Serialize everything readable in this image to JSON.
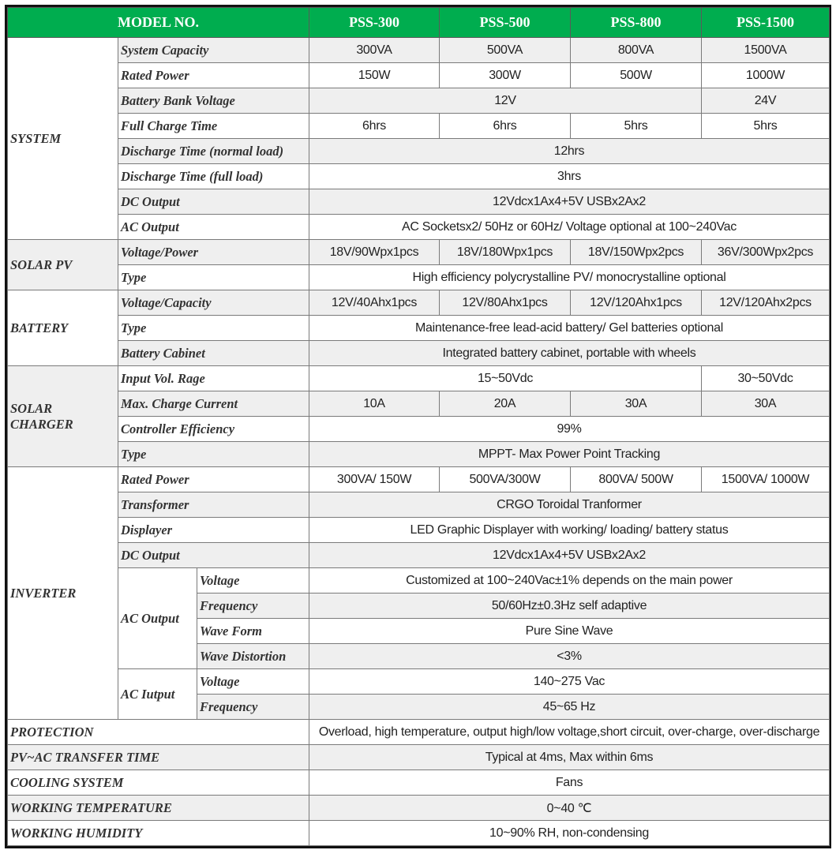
{
  "colors": {
    "header_bg": "#00ad4f",
    "header_text": "#ffffff",
    "stripe": "#efefef",
    "border": "#7a7a7a"
  },
  "header": {
    "model_label": "MODEL NO.",
    "models": [
      "PSS-300",
      "PSS-500",
      "PSS-800",
      "PSS-1500"
    ]
  },
  "sections": [
    {
      "category": "SYSTEM",
      "rows": [
        {
          "label": "System Capacity",
          "cells": [
            {
              "v": "300VA"
            },
            {
              "v": "500VA"
            },
            {
              "v": "800VA"
            },
            {
              "v": "1500VA"
            }
          ]
        },
        {
          "label": "Rated Power",
          "cells": [
            {
              "v": "150W"
            },
            {
              "v": "300W"
            },
            {
              "v": "500W"
            },
            {
              "v": "1000W"
            }
          ]
        },
        {
          "label": "Battery Bank Voltage",
          "cells": [
            {
              "v": "12V",
              "span": 3
            },
            {
              "v": "24V"
            }
          ]
        },
        {
          "label": "Full Charge Time",
          "cells": [
            {
              "v": "6hrs"
            },
            {
              "v": "6hrs"
            },
            {
              "v": "5hrs"
            },
            {
              "v": "5hrs"
            }
          ]
        },
        {
          "label": "Discharge Time (normal load)",
          "cells": [
            {
              "v": "12hrs",
              "span": 4
            }
          ]
        },
        {
          "label": "Discharge Time (full load)",
          "cells": [
            {
              "v": "3hrs",
              "span": 4
            }
          ]
        },
        {
          "label": "DC Output",
          "cells": [
            {
              "v": "12Vdcx1Ax4+5V USBx2Ax2",
              "span": 4
            }
          ]
        },
        {
          "label": "AC Output",
          "cells": [
            {
              "v": "AC Socketsx2/ 50Hz or 60Hz/ Voltage optional at 100~240Vac",
              "span": 4
            }
          ]
        }
      ]
    },
    {
      "category": "SOLAR PV",
      "rows": [
        {
          "label": "Voltage/Power",
          "cells": [
            {
              "v": "18V/90Wpx1pcs"
            },
            {
              "v": "18V/180Wpx1pcs"
            },
            {
              "v": "18V/150Wpx2pcs"
            },
            {
              "v": "36V/300Wpx2pcs"
            }
          ]
        },
        {
          "label": "Type",
          "cells": [
            {
              "v": "High efficiency polycrystalline PV/ monocrystalline optional",
              "span": 4
            }
          ]
        }
      ]
    },
    {
      "category": "BATTERY",
      "rows": [
        {
          "label": "Voltage/Capacity",
          "cells": [
            {
              "v": "12V/40Ahx1pcs"
            },
            {
              "v": "12V/80Ahx1pcs"
            },
            {
              "v": "12V/120Ahx1pcs"
            },
            {
              "v": "12V/120Ahx2pcs"
            }
          ]
        },
        {
          "label": "Type",
          "cells": [
            {
              "v": "Maintenance-free lead-acid battery/ Gel batteries optional",
              "span": 4
            }
          ]
        },
        {
          "label": "Battery Cabinet",
          "cells": [
            {
              "v": "Integrated battery cabinet, portable with wheels",
              "span": 4
            }
          ]
        }
      ]
    },
    {
      "category": "SOLAR CHARGER",
      "rows": [
        {
          "label": "Input Vol. Rage",
          "cells": [
            {
              "v": "15~50Vdc",
              "span": 3
            },
            {
              "v": "30~50Vdc"
            }
          ]
        },
        {
          "label": "Max. Charge Current",
          "cells": [
            {
              "v": "10A"
            },
            {
              "v": "20A"
            },
            {
              "v": "30A"
            },
            {
              "v": "30A"
            }
          ]
        },
        {
          "label": "Controller Efficiency",
          "cells": [
            {
              "v": "99%",
              "span": 4
            }
          ]
        },
        {
          "label": "Type",
          "cells": [
            {
              "v": "MPPT- Max Power Point Tracking",
              "span": 4
            }
          ]
        }
      ]
    },
    {
      "category": "INVERTER",
      "rows": [
        {
          "label": "Rated Power",
          "cells": [
            {
              "v": "300VA/ 150W"
            },
            {
              "v": "500VA/300W"
            },
            {
              "v": "800VA/ 500W"
            },
            {
              "v": "1500VA/ 1000W"
            }
          ]
        },
        {
          "label": "Transformer",
          "cells": [
            {
              "v": "CRGO Toroidal Tranformer",
              "span": 4
            }
          ]
        },
        {
          "label": "Displayer",
          "cells": [
            {
              "v": "LED Graphic Displayer with working/ loading/ battery status",
              "span": 4
            }
          ]
        },
        {
          "label": "DC Output",
          "cells": [
            {
              "v": "12Vdcx1Ax4+5V USBx2Ax2",
              "span": 4
            }
          ]
        },
        {
          "group": "AC Output",
          "items": [
            {
              "label": "Voltage",
              "cells": [
                {
                  "v": "Customized at 100~240Vac±1% depends on the main power",
                  "span": 4
                }
              ]
            },
            {
              "label": "Frequency",
              "cells": [
                {
                  "v": "50/60Hz±0.3Hz self adaptive",
                  "span": 4
                }
              ]
            },
            {
              "label": "Wave Form",
              "cells": [
                {
                  "v": "Pure Sine Wave",
                  "span": 4
                }
              ]
            },
            {
              "label": "Wave Distortion",
              "cells": [
                {
                  "v": "<3%",
                  "span": 4
                }
              ]
            }
          ]
        },
        {
          "group": "AC Iutput",
          "items": [
            {
              "label": "Voltage",
              "cells": [
                {
                  "v": "140~275 Vac",
                  "span": 4
                }
              ]
            },
            {
              "label": "Frequency",
              "cells": [
                {
                  "v": "45~65 Hz",
                  "span": 4
                }
              ]
            }
          ]
        }
      ]
    }
  ],
  "bottom_rows": [
    {
      "label": "PROTECTION",
      "value": "Overload, high temperature, output high/low voltage,short circuit, over-charge, over-discharge"
    },
    {
      "label": "PV~AC TRANSFER TIME",
      "value": "Typical at 4ms, Max within 6ms"
    },
    {
      "label": "COOLING SYSTEM",
      "value": "Fans"
    },
    {
      "label": "WORKING TEMPERATURE",
      "value": "0~40 ℃"
    },
    {
      "label": "WORKING HUMIDITY",
      "value": "10~90% RH, non-condensing"
    }
  ]
}
